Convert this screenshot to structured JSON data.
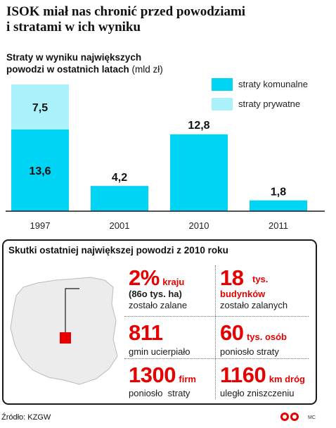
{
  "headline": {
    "line1": "ISOK miał nas chronić przed powodziami",
    "line2": "i stratami w ich wyniku"
  },
  "chart_data": {
    "type": "bar",
    "stacked": true,
    "title": "Straty w wyniku największych powodzi w ostatnich latach",
    "title_line1": "Straty w wyniku największych",
    "title_line2": "powodzi w ostatnich latach",
    "unit": "(mld zł)",
    "categories": [
      "1997",
      "2001",
      "2010",
      "2011"
    ],
    "series": [
      {
        "name": "straty komunalne",
        "color": "#00d4f5",
        "values": [
          13.6,
          4.2,
          12.8,
          1.8
        ]
      },
      {
        "name": "straty prywatne",
        "color": "#aaf1fc",
        "values": [
          7.5,
          0,
          0,
          0
        ]
      }
    ],
    "data_labels": [
      [
        "13,6",
        "4,2",
        "12,8",
        "1,8"
      ],
      [
        "7,5",
        "",
        "",
        ""
      ]
    ],
    "legend_position": "top-right",
    "grid": false,
    "ylim": [
      0,
      21.1
    ]
  },
  "infobox": {
    "title": "Skutki ostatniej największej powodzi z 2010 roku",
    "stats": [
      {
        "value": "2%",
        "unit": "kraju",
        "extra": "(86o tys. ha)",
        "desc": "zostało zalane"
      },
      {
        "value": "18",
        "unit_line1": "tys.",
        "unit_line2": "budynków",
        "desc": "zostało zalanych"
      },
      {
        "value": "811",
        "desc": "gmin ucierpiało"
      },
      {
        "value": "60",
        "unit": "tys. osób",
        "desc": "poniosło straty"
      },
      {
        "value": "1300",
        "unit": "firm",
        "desc": "poniosło  straty"
      },
      {
        "value": "1160",
        "unit": "km dróg",
        "desc": "uległo zniszczeniu"
      }
    ]
  },
  "footer": {
    "source": "Źródło: KZGW",
    "signature": "MC"
  },
  "colors": {
    "accent_red": "#e60000",
    "bar_communal": "#00d4f5",
    "bar_private": "#aaf1fc"
  }
}
